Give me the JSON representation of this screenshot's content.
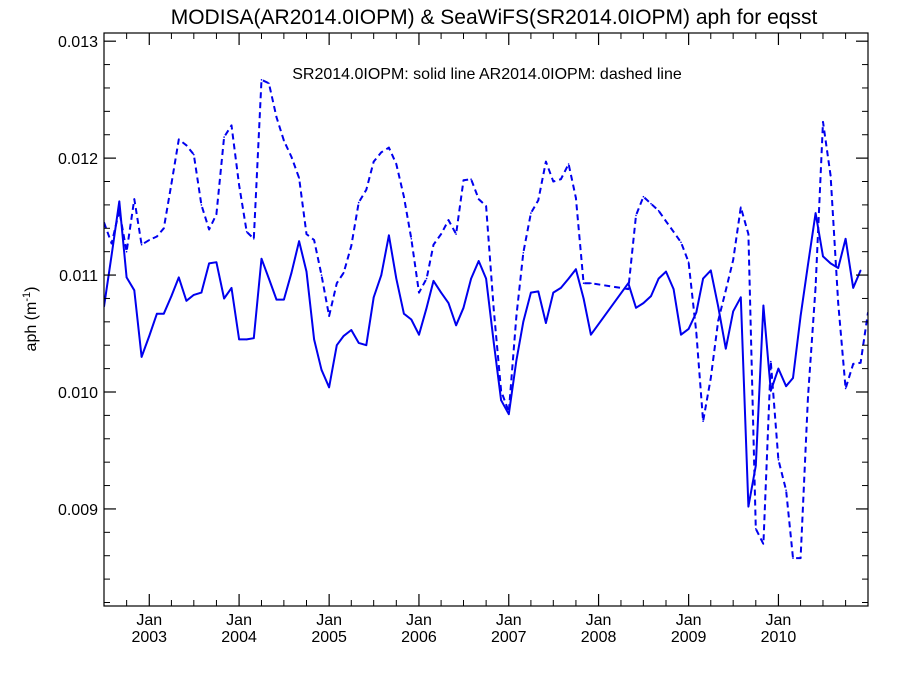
{
  "chart_data": {
    "type": "line",
    "title": "MODISA(AR2014.0IOPM) & SeaWiFS(SR2014.0IOPM)  aph for eqsst",
    "annotation": "SR2014.0IOPM: solid line   AR2014.0IOPM: dashed line",
    "ylabel": "aph (m",
    "ylabel_sup": "-1",
    "ylabel_close": ")",
    "xlabel": "",
    "ylim": [
      0.00817,
      0.01307
    ],
    "xlim": [
      "2002-07-01",
      "2010-12-31"
    ],
    "y_ticks": [
      0.009,
      0.01,
      0.011,
      0.012,
      0.013
    ],
    "y_tick_labels": [
      "0.009",
      "0.010",
      "0.011",
      "0.012",
      "0.013"
    ],
    "x_ticks": [
      {
        "date": "2003-01-01",
        "month": "Jan",
        "year": "2003"
      },
      {
        "date": "2004-01-01",
        "month": "Jan",
        "year": "2004"
      },
      {
        "date": "2005-01-01",
        "month": "Jan",
        "year": "2005"
      },
      {
        "date": "2006-01-01",
        "month": "Jan",
        "year": "2006"
      },
      {
        "date": "2007-01-01",
        "month": "Jan",
        "year": "2007"
      },
      {
        "date": "2008-01-01",
        "month": "Jan",
        "year": "2008"
      },
      {
        "date": "2009-01-01",
        "month": "Jan",
        "year": "2009"
      },
      {
        "date": "2010-01-01",
        "month": "Jan",
        "year": "2010"
      }
    ],
    "line_color": "#0000ee",
    "grid": false,
    "series": [
      {
        "style": "solid",
        "points": [
          [
            "2002-07-01",
            0.01073
          ],
          [
            "2002-08-01",
            0.01117
          ],
          [
            "2002-09-01",
            0.01163
          ],
          [
            "2002-10-01",
            0.01098
          ],
          [
            "2002-11-01",
            0.01087
          ],
          [
            "2002-12-01",
            0.0103
          ],
          [
            "2003-01-01",
            0.01048
          ],
          [
            "2003-02-01",
            0.01067
          ],
          [
            "2003-03-01",
            0.01067
          ],
          [
            "2003-04-01",
            0.01082
          ],
          [
            "2003-05-01",
            0.01098
          ],
          [
            "2003-06-01",
            0.01078
          ],
          [
            "2003-07-01",
            0.01083
          ],
          [
            "2003-08-01",
            0.01085
          ],
          [
            "2003-09-01",
            0.0111
          ],
          [
            "2003-10-01",
            0.01111
          ],
          [
            "2003-11-01",
            0.0108
          ],
          [
            "2003-12-01",
            0.01089
          ],
          [
            "2004-01-01",
            0.01045
          ],
          [
            "2004-02-01",
            0.01045
          ],
          [
            "2004-03-01",
            0.01046
          ],
          [
            "2004-04-01",
            0.01114
          ],
          [
            "2004-05-01",
            0.01097
          ],
          [
            "2004-06-01",
            0.01079
          ],
          [
            "2004-07-01",
            0.01079
          ],
          [
            "2004-08-01",
            0.01102
          ],
          [
            "2004-09-01",
            0.01129
          ],
          [
            "2004-10-01",
            0.01103
          ],
          [
            "2004-11-01",
            0.01045
          ],
          [
            "2004-12-01",
            0.01019
          ],
          [
            "2005-01-01",
            0.01004
          ],
          [
            "2005-02-01",
            0.0104
          ],
          [
            "2005-03-01",
            0.01048
          ],
          [
            "2005-04-01",
            0.01053
          ],
          [
            "2005-05-01",
            0.01042
          ],
          [
            "2005-06-01",
            0.0104
          ],
          [
            "2005-07-01",
            0.01081
          ],
          [
            "2005-08-01",
            0.011
          ],
          [
            "2005-09-01",
            0.01134
          ],
          [
            "2005-10-01",
            0.01097
          ],
          [
            "2005-11-01",
            0.01067
          ],
          [
            "2005-12-01",
            0.01062
          ],
          [
            "2006-01-01",
            0.01049
          ],
          [
            "2006-02-01",
            0.01072
          ],
          [
            "2006-03-01",
            0.01095
          ],
          [
            "2006-04-01",
            0.01085
          ],
          [
            "2006-05-01",
            0.01076
          ],
          [
            "2006-06-01",
            0.01057
          ],
          [
            "2006-07-01",
            0.01072
          ],
          [
            "2006-08-01",
            0.01097
          ],
          [
            "2006-09-01",
            0.01112
          ],
          [
            "2006-10-01",
            0.01097
          ],
          [
            "2006-11-01",
            0.01042
          ],
          [
            "2006-12-01",
            0.00993
          ],
          [
            "2007-01-01",
            0.00981
          ],
          [
            "2007-02-01",
            0.01027
          ],
          [
            "2007-03-01",
            0.0106
          ],
          [
            "2007-04-01",
            0.01085
          ],
          [
            "2007-05-01",
            0.01086
          ],
          [
            "2007-06-01",
            0.01059
          ],
          [
            "2007-07-01",
            0.01085
          ],
          [
            "2007-08-01",
            0.01089
          ],
          [
            "2007-09-01",
            0.01097
          ],
          [
            "2007-10-01",
            0.01105
          ],
          [
            "2007-11-01",
            0.0108
          ],
          [
            "2007-12-01",
            0.01049
          ],
          [
            "2008-05-01",
            0.01093
          ],
          [
            "2008-06-01",
            0.01072
          ],
          [
            "2008-07-01",
            0.01076
          ],
          [
            "2008-08-01",
            0.01082
          ],
          [
            "2008-09-01",
            0.01097
          ],
          [
            "2008-10-01",
            0.01103
          ],
          [
            "2008-11-01",
            0.01088
          ],
          [
            "2008-12-01",
            0.01049
          ],
          [
            "2009-01-01",
            0.01054
          ],
          [
            "2009-02-01",
            0.01068
          ],
          [
            "2009-03-01",
            0.01097
          ],
          [
            "2009-04-01",
            0.01104
          ],
          [
            "2009-05-01",
            0.01073
          ],
          [
            "2009-06-01",
            0.01037
          ],
          [
            "2009-07-01",
            0.01069
          ],
          [
            "2009-08-01",
            0.01081
          ],
          [
            "2009-09-01",
            0.00902
          ],
          [
            "2009-10-01",
            0.00937
          ],
          [
            "2009-11-01",
            0.01074
          ],
          [
            "2009-12-01",
            0.01001
          ],
          [
            "2010-01-01",
            0.0102
          ],
          [
            "2010-02-01",
            0.01005
          ],
          [
            "2010-03-01",
            0.01012
          ],
          [
            "2010-04-01",
            0.01065
          ],
          [
            "2010-05-01",
            0.01109
          ],
          [
            "2010-06-01",
            0.01153
          ],
          [
            "2010-07-01",
            0.01116
          ],
          [
            "2010-08-01",
            0.0111
          ],
          [
            "2010-09-01",
            0.01106
          ],
          [
            "2010-10-01",
            0.01131
          ],
          [
            "2010-11-01",
            0.01089
          ],
          [
            "2010-12-01",
            0.01104
          ]
        ]
      },
      {
        "style": "dashed",
        "points": [
          [
            "2002-07-01",
            0.01145
          ],
          [
            "2002-08-01",
            0.01127
          ],
          [
            "2002-09-01",
            0.01155
          ],
          [
            "2002-10-01",
            0.0112
          ],
          [
            "2002-11-01",
            0.01165
          ],
          [
            "2002-12-01",
            0.01126
          ],
          [
            "2003-01-01",
            0.0113
          ],
          [
            "2003-02-01",
            0.01133
          ],
          [
            "2003-03-01",
            0.0114
          ],
          [
            "2003-04-01",
            0.01178
          ],
          [
            "2003-05-01",
            0.01216
          ],
          [
            "2003-06-01",
            0.01211
          ],
          [
            "2003-07-01",
            0.01203
          ],
          [
            "2003-08-01",
            0.0116
          ],
          [
            "2003-09-01",
            0.01139
          ],
          [
            "2003-10-01",
            0.01152
          ],
          [
            "2003-11-01",
            0.01218
          ],
          [
            "2003-12-01",
            0.01228
          ],
          [
            "2004-01-01",
            0.01177
          ],
          [
            "2004-02-01",
            0.01137
          ],
          [
            "2004-03-01",
            0.01131
          ],
          [
            "2004-04-01",
            0.01267
          ],
          [
            "2004-05-01",
            0.01264
          ],
          [
            "2004-06-01",
            0.01235
          ],
          [
            "2004-07-01",
            0.01215
          ],
          [
            "2004-08-01",
            0.01201
          ],
          [
            "2004-09-01",
            0.01183
          ],
          [
            "2004-10-01",
            0.01135
          ],
          [
            "2004-11-01",
            0.0113
          ],
          [
            "2004-12-01",
            0.011
          ],
          [
            "2005-01-01",
            0.01065
          ],
          [
            "2005-02-01",
            0.01093
          ],
          [
            "2005-03-01",
            0.01102
          ],
          [
            "2005-04-01",
            0.01125
          ],
          [
            "2005-05-01",
            0.01162
          ],
          [
            "2005-06-01",
            0.01173
          ],
          [
            "2005-07-01",
            0.01197
          ],
          [
            "2005-08-01",
            0.01205
          ],
          [
            "2005-09-01",
            0.01209
          ],
          [
            "2005-10-01",
            0.01195
          ],
          [
            "2005-11-01",
            0.01167
          ],
          [
            "2005-12-01",
            0.01131
          ],
          [
            "2006-01-01",
            0.01085
          ],
          [
            "2006-02-01",
            0.01097
          ],
          [
            "2006-03-01",
            0.01126
          ],
          [
            "2006-04-01",
            0.01135
          ],
          [
            "2006-05-01",
            0.01147
          ],
          [
            "2006-06-01",
            0.01135
          ],
          [
            "2006-07-01",
            0.01181
          ],
          [
            "2006-08-01",
            0.01182
          ],
          [
            "2006-09-01",
            0.01165
          ],
          [
            "2006-10-01",
            0.01159
          ],
          [
            "2006-11-01",
            0.0107
          ],
          [
            "2006-12-01",
            0.01001
          ],
          [
            "2007-01-01",
            0.00983
          ],
          [
            "2007-02-01",
            0.01065
          ],
          [
            "2007-03-01",
            0.01119
          ],
          [
            "2007-04-01",
            0.01153
          ],
          [
            "2007-05-01",
            0.01164
          ],
          [
            "2007-06-01",
            0.01197
          ],
          [
            "2007-07-01",
            0.0118
          ],
          [
            "2007-08-01",
            0.01182
          ],
          [
            "2007-09-01",
            0.01195
          ],
          [
            "2007-10-01",
            0.01166
          ],
          [
            "2007-11-01",
            0.01093
          ],
          [
            "2007-12-01",
            0.01093
          ],
          [
            "2008-05-01",
            0.01088
          ],
          [
            "2008-06-01",
            0.01151
          ],
          [
            "2008-07-01",
            0.01167
          ],
          [
            "2008-08-01",
            0.01161
          ],
          [
            "2008-09-01",
            0.01155
          ],
          [
            "2008-10-01",
            0.01146
          ],
          [
            "2008-11-01",
            0.01137
          ],
          [
            "2008-12-01",
            0.01128
          ],
          [
            "2009-01-01",
            0.01111
          ],
          [
            "2009-02-01",
            0.01051
          ],
          [
            "2009-03-01",
            0.00975
          ],
          [
            "2009-04-01",
            0.01012
          ],
          [
            "2009-05-01",
            0.01061
          ],
          [
            "2009-06-01",
            0.01087
          ],
          [
            "2009-07-01",
            0.01113
          ],
          [
            "2009-08-01",
            0.01158
          ],
          [
            "2009-09-01",
            0.01135
          ],
          [
            "2009-10-01",
            0.00883
          ],
          [
            "2009-11-01",
            0.0087
          ],
          [
            "2009-12-01",
            0.01026
          ],
          [
            "2010-01-01",
            0.00942
          ],
          [
            "2010-02-01",
            0.00916
          ],
          [
            "2010-03-01",
            0.00858
          ],
          [
            "2010-04-01",
            0.00858
          ],
          [
            "2010-05-01",
            0.00996
          ],
          [
            "2010-06-01",
            0.0109
          ],
          [
            "2010-07-01",
            0.01231
          ],
          [
            "2010-08-01",
            0.01185
          ],
          [
            "2010-09-01",
            0.01076
          ],
          [
            "2010-10-01",
            0.01003
          ],
          [
            "2010-11-01",
            0.01024
          ],
          [
            "2010-12-01",
            0.01025
          ],
          [
            "2010-12-31",
            0.01068
          ]
        ]
      }
    ]
  }
}
